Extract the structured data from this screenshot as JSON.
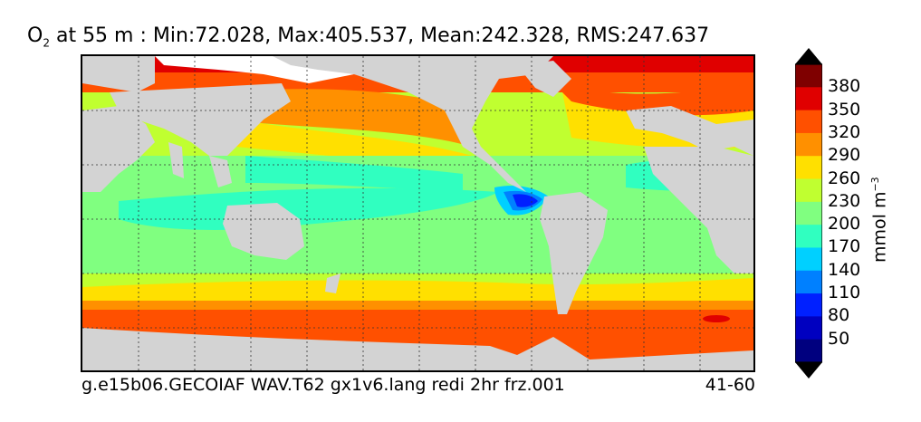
{
  "title": {
    "var_main": "O",
    "var_sub": "2",
    "rest": " at 55 m : Min:72.028, Max:405.537, Mean:242.328, RMS:247.637"
  },
  "footer": {
    "case": "g.e15b06.GECOIAF WAV.T62 gx1v6.lang redi 2hr frz.001",
    "years": "41-60"
  },
  "colorbar": {
    "unit_main": "mmol m",
    "unit_sup": "−3",
    "labels": [
      "380",
      "350",
      "320",
      "290",
      "260",
      "230",
      "200",
      "170",
      "140",
      "110",
      "80",
      "50"
    ],
    "colors": [
      "#7f0000",
      "#e00000",
      "#ff5000",
      "#ff9000",
      "#ffe000",
      "#c0ff30",
      "#80ff80",
      "#30ffc0",
      "#00d0ff",
      "#0080ff",
      "#0020ff",
      "#0000c0",
      "#00007f"
    ],
    "under_color": "#000000",
    "over_color": "#000000"
  },
  "map_colors": {
    "land": "#d3d3d3",
    "ice": "#ffffff",
    "c_380": "#7f0000",
    "c_350": "#e00000",
    "c_320": "#ff5000",
    "c_290": "#ff9000",
    "c_260": "#ffe000",
    "c_230": "#c0ff30",
    "c_200": "#80ff80",
    "c_170": "#30ffc0",
    "c_140": "#00d0ff",
    "c_110": "#0080ff",
    "c_80": "#0020ff",
    "c_50": "#0000c0"
  }
}
